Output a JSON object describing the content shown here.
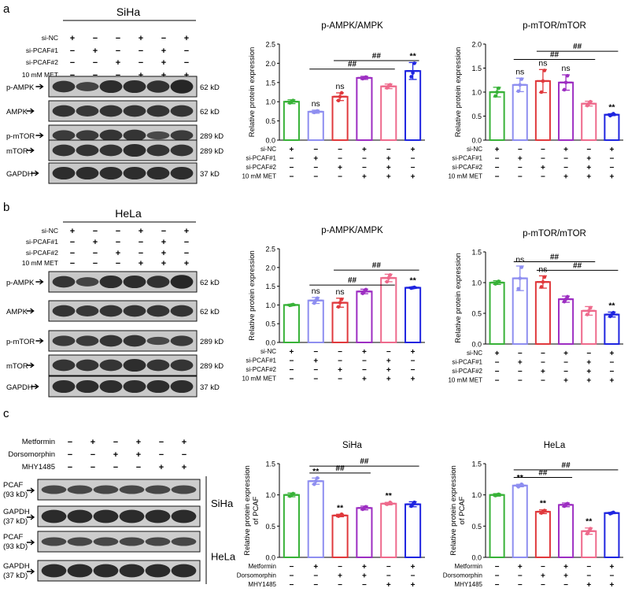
{
  "panels": {
    "a": {
      "label": "a",
      "cell": "SiHa"
    },
    "b": {
      "label": "b",
      "cell": "HeLa"
    },
    "c": {
      "label": "c"
    }
  },
  "blot_ab": {
    "treatments": [
      "si-NC",
      "si-PCAF#1",
      "si-PCAF#2",
      "10 mM MET"
    ],
    "signs": [
      [
        "+",
        "−",
        "−",
        "+",
        "−",
        "+"
      ],
      [
        "−",
        "+",
        "−",
        "−",
        "+",
        "−"
      ],
      [
        "−",
        "−",
        "+",
        "−",
        "+",
        "−"
      ],
      [
        "−",
        "−",
        "−",
        "+",
        "+",
        "+"
      ]
    ],
    "bands": [
      {
        "name": "p-AMPK",
        "kd": "62 kD"
      },
      {
        "name": "AMPK",
        "kd": "62 kD"
      },
      {
        "name": "p-mTOR",
        "kd": "289 kD"
      },
      {
        "name": "mTOR",
        "kd": "289 kD"
      },
      {
        "name": "GAPDH",
        "kd": "37 kD"
      }
    ]
  },
  "blot_c": {
    "treatments": [
      "Metformin",
      "Dorsomorphin",
      "MHY1485"
    ],
    "signs": [
      [
        "−",
        "+",
        "−",
        "+",
        "−",
        "+"
      ],
      [
        "−",
        "−",
        "+",
        "+",
        "−",
        "−"
      ],
      [
        "−",
        "−",
        "−",
        "−",
        "+",
        "+"
      ]
    ],
    "groups": [
      {
        "cell": "SiHa",
        "bands": [
          {
            "line1": "PCAF",
            "line2": "(93 kD)"
          },
          {
            "line1": "GAPDH",
            "line2": "(37 kD)"
          }
        ]
      },
      {
        "cell": "HeLa",
        "bands": [
          {
            "line1": "PCAF",
            "line2": "(93 kD)"
          },
          {
            "line1": "GAPDH",
            "line2": "(37 kD)"
          }
        ]
      }
    ]
  },
  "colors": [
    "#38b238",
    "#8e8ef0",
    "#e0393d",
    "#9d2ec2",
    "#ee6a8c",
    "#1f25e0"
  ],
  "chart_data": [
    {
      "type": "bar",
      "title": "p-AMPK/AMPK",
      "ylabel": "Relative protein expression",
      "ylim": [
        0,
        2.5
      ],
      "yticks": [
        "0.0",
        "0.5",
        "1.0",
        "1.5",
        "2.0",
        "2.5"
      ],
      "values": [
        1.0,
        0.74,
        1.13,
        1.62,
        1.4,
        1.8
      ],
      "errors": [
        0.05,
        0.04,
        0.1,
        0.04,
        0.06,
        0.22
      ],
      "points": [
        [
          0.97,
          1.0,
          1.03
        ],
        [
          0.72,
          0.74,
          0.76
        ],
        [
          1.03,
          1.13,
          1.23
        ],
        [
          1.6,
          1.62,
          1.64
        ],
        [
          1.36,
          1.4,
          1.44
        ],
        [
          1.65,
          1.75,
          2.0
        ]
      ],
      "annotations": [
        "",
        "ns",
        "ns",
        "",
        "",
        "**"
      ],
      "brackets": [
        {
          "from": 1,
          "to": 4,
          "y": 1.85,
          "label": "##"
        },
        {
          "from": 2,
          "to": 5,
          "y": 2.07,
          "label": "##"
        }
      ],
      "treatments": [
        "si-NC",
        "si-PCAF#1",
        "si-PCAF#2",
        "10 mM MET"
      ],
      "signs": [
        [
          "+",
          "−",
          "−",
          "+",
          "−",
          "+"
        ],
        [
          "−",
          "+",
          "−",
          "−",
          "+",
          "−"
        ],
        [
          "−",
          "−",
          "+",
          "−",
          "+",
          "−"
        ],
        [
          "−",
          "−",
          "−",
          "+",
          "+",
          "+"
        ]
      ]
    },
    {
      "type": "bar",
      "title": "p-mTOR/mTOR",
      "ylabel": "Relative protein expression",
      "ylim": [
        0,
        2.0
      ],
      "yticks": [
        "0.0",
        "0.5",
        "1.0",
        "1.5",
        "2.0"
      ],
      "values": [
        1.0,
        1.15,
        1.23,
        1.2,
        0.76,
        0.53
      ],
      "errors": [
        0.1,
        0.14,
        0.24,
        0.16,
        0.05,
        0.02
      ],
      "points": [
        [
          0.92,
          1.0,
          1.08
        ],
        [
          1.02,
          1.15,
          1.27
        ],
        [
          1.0,
          1.23,
          1.45
        ],
        [
          1.05,
          1.2,
          1.34
        ],
        [
          0.72,
          0.76,
          0.8
        ],
        [
          0.51,
          0.53,
          0.55
        ]
      ],
      "annotations": [
        "",
        "ns",
        "ns",
        "ns",
        "",
        "**"
      ],
      "brackets": [
        {
          "from": 1,
          "to": 4,
          "y": 1.68,
          "label": "##"
        },
        {
          "from": 2,
          "to": 5,
          "y": 1.85,
          "label": "##"
        }
      ],
      "treatments": [
        "si-NC",
        "si-PCAF#1",
        "si-PCAF#2",
        "10 mM MET"
      ],
      "signs": [
        [
          "+",
          "−",
          "−",
          "+",
          "−",
          "+"
        ],
        [
          "−",
          "+",
          "−",
          "−",
          "+",
          "−"
        ],
        [
          "−",
          "−",
          "+",
          "−",
          "+",
          "−"
        ],
        [
          "−",
          "−",
          "−",
          "+",
          "+",
          "+"
        ]
      ]
    },
    {
      "type": "bar",
      "title": "p-AMPK/AMPK",
      "ylabel": "Relative protein expression",
      "ylim": [
        0,
        2.5
      ],
      "yticks": [
        "0.0",
        "0.5",
        "1.0",
        "1.5",
        "2.0",
        "2.5"
      ],
      "values": [
        1.0,
        1.12,
        1.06,
        1.36,
        1.72,
        1.46
      ],
      "errors": [
        0.02,
        0.08,
        0.12,
        0.06,
        0.1,
        0.02
      ],
      "points": [
        [
          0.99,
          1.0,
          1.01
        ],
        [
          1.05,
          1.12,
          1.18
        ],
        [
          0.95,
          1.06,
          1.15
        ],
        [
          1.31,
          1.36,
          1.41
        ],
        [
          1.62,
          1.72,
          1.8
        ],
        [
          1.45,
          1.46,
          1.47
        ]
      ],
      "annotations": [
        "",
        "ns",
        "ns",
        "",
        "",
        "**"
      ],
      "brackets": [
        {
          "from": 1,
          "to": 4,
          "y": 1.53,
          "label": "##"
        },
        {
          "from": 2,
          "to": 5,
          "y": 1.93,
          "label": "##"
        }
      ],
      "treatments": [
        "si-NC",
        "si-PCAF#1",
        "si-PCAF#2",
        "10 mM MET"
      ],
      "signs": [
        [
          "+",
          "−",
          "−",
          "+",
          "−",
          "+"
        ],
        [
          "−",
          "+",
          "−",
          "−",
          "+",
          "−"
        ],
        [
          "−",
          "−",
          "+",
          "−",
          "+",
          "−"
        ],
        [
          "−",
          "−",
          "−",
          "+",
          "+",
          "+"
        ]
      ]
    },
    {
      "type": "bar",
      "title": "p-mTOR/mTOR",
      "ylabel": "Relative protein expression",
      "ylim": [
        0,
        1.5
      ],
      "yticks": [
        "0.0",
        "0.5",
        "1.0",
        "1.5"
      ],
      "values": [
        1.0,
        1.07,
        1.01,
        0.73,
        0.54,
        0.48
      ],
      "errors": [
        0.03,
        0.2,
        0.1,
        0.05,
        0.07,
        0.04
      ],
      "points": [
        [
          0.98,
          1.0,
          1.02
        ],
        [
          0.9,
          1.07,
          1.25
        ],
        [
          0.93,
          1.01,
          1.09
        ],
        [
          0.69,
          0.73,
          0.77
        ],
        [
          0.48,
          0.54,
          0.59
        ],
        [
          0.45,
          0.48,
          0.51
        ]
      ],
      "annotations": [
        "",
        "ns",
        "ns",
        "",
        "",
        "**"
      ],
      "brackets": [
        {
          "from": 1,
          "to": 4,
          "y": 1.34,
          "label": "##"
        },
        {
          "from": 2,
          "to": 5,
          "y": 1.2,
          "label": "##"
        }
      ],
      "treatments": [
        "si-NC",
        "si-PCAF#1",
        "si-PCAF#2",
        "10 mM MET"
      ],
      "signs": [
        [
          "+",
          "−",
          "−",
          "+",
          "−",
          "+"
        ],
        [
          "−",
          "+",
          "−",
          "−",
          "+",
          "−"
        ],
        [
          "−",
          "−",
          "+",
          "−",
          "+",
          "−"
        ],
        [
          "−",
          "−",
          "−",
          "+",
          "+",
          "+"
        ]
      ]
    },
    {
      "type": "bar",
      "title": "SiHa",
      "ylabel": "Relative protein expression of PCAF",
      "ylim": [
        0,
        1.5
      ],
      "yticks": [
        "0.0",
        "0.5",
        "1.0",
        "1.5"
      ],
      "values": [
        1.0,
        1.22,
        0.67,
        0.79,
        0.86,
        0.85
      ],
      "errors": [
        0.03,
        0.05,
        0.02,
        0.03,
        0.02,
        0.04
      ],
      "points": [
        [
          0.98,
          1.0,
          1.02
        ],
        [
          1.17,
          1.22,
          1.27
        ],
        [
          0.66,
          0.67,
          0.69
        ],
        [
          0.77,
          0.79,
          0.81
        ],
        [
          0.85,
          0.86,
          0.88
        ],
        [
          0.82,
          0.85,
          0.88
        ]
      ],
      "annotations": [
        "",
        "**",
        "**",
        "",
        "**",
        ""
      ],
      "brackets": [
        {
          "from": 1,
          "to": 3,
          "y": 1.35,
          "label": "##"
        },
        {
          "from": 1,
          "to": 5,
          "y": 1.46,
          "label": "##"
        }
      ],
      "treatments": [
        "Metformin",
        "Dorsomorphin",
        "MHY1485"
      ],
      "signs": [
        [
          "−",
          "+",
          "−",
          "+",
          "−",
          "+"
        ],
        [
          "−",
          "−",
          "+",
          "+",
          "−",
          "−"
        ],
        [
          "−",
          "−",
          "−",
          "−",
          "+",
          "+"
        ]
      ]
    },
    {
      "type": "bar",
      "title": "HeLa",
      "ylabel": "Relative protein expression of PCAF",
      "ylim": [
        0,
        1.5
      ],
      "yticks": [
        "0.0",
        "0.5",
        "1.0",
        "1.5"
      ],
      "values": [
        1.0,
        1.15,
        0.73,
        0.84,
        0.42,
        0.71
      ],
      "errors": [
        0.02,
        0.02,
        0.03,
        0.03,
        0.05,
        0.01
      ],
      "points": [
        [
          0.99,
          1.0,
          1.01
        ],
        [
          1.13,
          1.15,
          1.17
        ],
        [
          0.71,
          0.73,
          0.75
        ],
        [
          0.82,
          0.84,
          0.86
        ],
        [
          0.38,
          0.42,
          0.46
        ],
        [
          0.7,
          0.71,
          0.72
        ]
      ],
      "annotations": [
        "",
        "**",
        "**",
        "",
        "**",
        ""
      ],
      "brackets": [
        {
          "from": 1,
          "to": 3,
          "y": 1.28,
          "label": "##"
        },
        {
          "from": 1,
          "to": 5,
          "y": 1.4,
          "label": "##"
        }
      ],
      "treatments": [
        "Metformin",
        "Dorsomorphin",
        "MHY1485"
      ],
      "signs": [
        [
          "−",
          "+",
          "−",
          "+",
          "−",
          "+"
        ],
        [
          "−",
          "−",
          "+",
          "+",
          "−",
          "−"
        ],
        [
          "−",
          "−",
          "−",
          "−",
          "+",
          "+"
        ]
      ]
    }
  ]
}
